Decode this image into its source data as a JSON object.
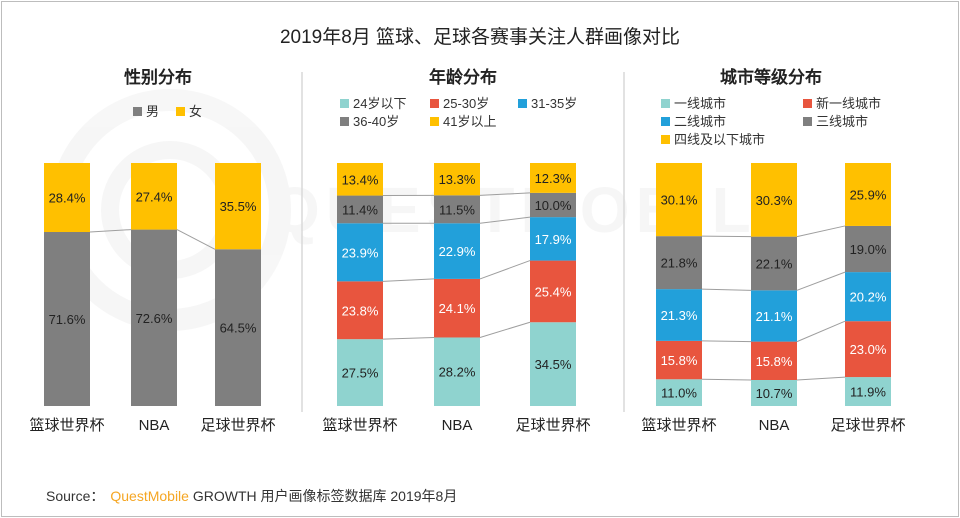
{
  "title": "2019年8月 篮球、足球各赛事关注人群画像对比",
  "source": {
    "label": "Source：",
    "brand": "QuestMobile",
    "text": "GROWTH 用户画像标签数据库 2019年8月"
  },
  "watermark": "QUESTMOBILE",
  "colors": {
    "male": "#7f7f7f",
    "female": "#ffc000",
    "age_24_below": "#8fd3cf",
    "age_25_30": "#e8553e",
    "age_31_35": "#22a0da",
    "age_36_40": "#7f7f7f",
    "age_41_above": "#ffc000",
    "connector": "#9e9e9e",
    "divider": "#d9d9d9"
  },
  "chart_data": [
    {
      "type": "bar",
      "stacked": true,
      "percent": true,
      "title": "性别分布",
      "categories": [
        "篮球世界杯",
        "NBA",
        "足球世界杯"
      ],
      "legend_position": "top",
      "series": [
        {
          "name": "男",
          "color": "#7f7f7f",
          "values": [
            71.6,
            72.6,
            64.5
          ]
        },
        {
          "name": "女",
          "color": "#ffc000",
          "values": [
            28.4,
            27.4,
            35.5
          ]
        }
      ],
      "value_labels": [
        [
          "71.6%",
          "72.6%",
          "64.5%"
        ],
        [
          "28.4%",
          "27.4%",
          "35.5%"
        ]
      ]
    },
    {
      "type": "bar",
      "stacked": true,
      "percent": true,
      "title": "年龄分布",
      "categories": [
        "篮球世界杯",
        "NBA",
        "足球世界杯"
      ],
      "legend_position": "top",
      "series": [
        {
          "name": "24岁以下",
          "color": "#8fd3cf",
          "values": [
            27.5,
            28.2,
            34.5
          ]
        },
        {
          "name": "25-30岁",
          "color": "#e8553e",
          "values": [
            23.8,
            24.1,
            25.4
          ]
        },
        {
          "name": "31-35岁",
          "color": "#22a0da",
          "values": [
            23.9,
            22.9,
            17.9
          ]
        },
        {
          "name": "36-40岁",
          "color": "#7f7f7f",
          "values": [
            11.4,
            11.5,
            10.0
          ]
        },
        {
          "name": "41岁以上",
          "color": "#ffc000",
          "values": [
            13.4,
            13.3,
            12.3
          ]
        }
      ],
      "value_labels": [
        [
          "27.5%",
          "28.2%",
          "34.5%"
        ],
        [
          "23.8%",
          "24.1%",
          "25.4%"
        ],
        [
          "23.9%",
          "22.9%",
          "17.9%"
        ],
        [
          "11.4%",
          "11.5%",
          "10.0%"
        ],
        [
          "13.4%",
          "13.3%",
          "12.3%"
        ]
      ]
    },
    {
      "type": "bar",
      "stacked": true,
      "percent": true,
      "title": "城市等级分布",
      "categories": [
        "篮球世界杯",
        "NBA",
        "足球世界杯"
      ],
      "legend_position": "top",
      "series": [
        {
          "name": "一线城市",
          "color": "#8fd3cf",
          "values": [
            11.0,
            10.7,
            11.9
          ]
        },
        {
          "name": "新一线城市",
          "color": "#e8553e",
          "values": [
            15.8,
            15.8,
            23.0
          ]
        },
        {
          "name": "二线城市",
          "color": "#22a0da",
          "values": [
            21.3,
            21.1,
            20.2
          ]
        },
        {
          "name": "三线城市",
          "color": "#7f7f7f",
          "values": [
            21.8,
            22.1,
            19.0
          ]
        },
        {
          "name": "四线及以下城市",
          "color": "#ffc000",
          "values": [
            30.1,
            30.3,
            25.9
          ]
        }
      ],
      "value_labels": [
        [
          "11.0%",
          "10.7%",
          "11.9%"
        ],
        [
          "15.8%",
          "15.8%",
          "23.0%"
        ],
        [
          "21.3%",
          "21.1%",
          "20.2%"
        ],
        [
          "21.8%",
          "22.1%",
          "19.0%"
        ],
        [
          "30.1%",
          "30.3%",
          "25.9%"
        ]
      ]
    }
  ]
}
